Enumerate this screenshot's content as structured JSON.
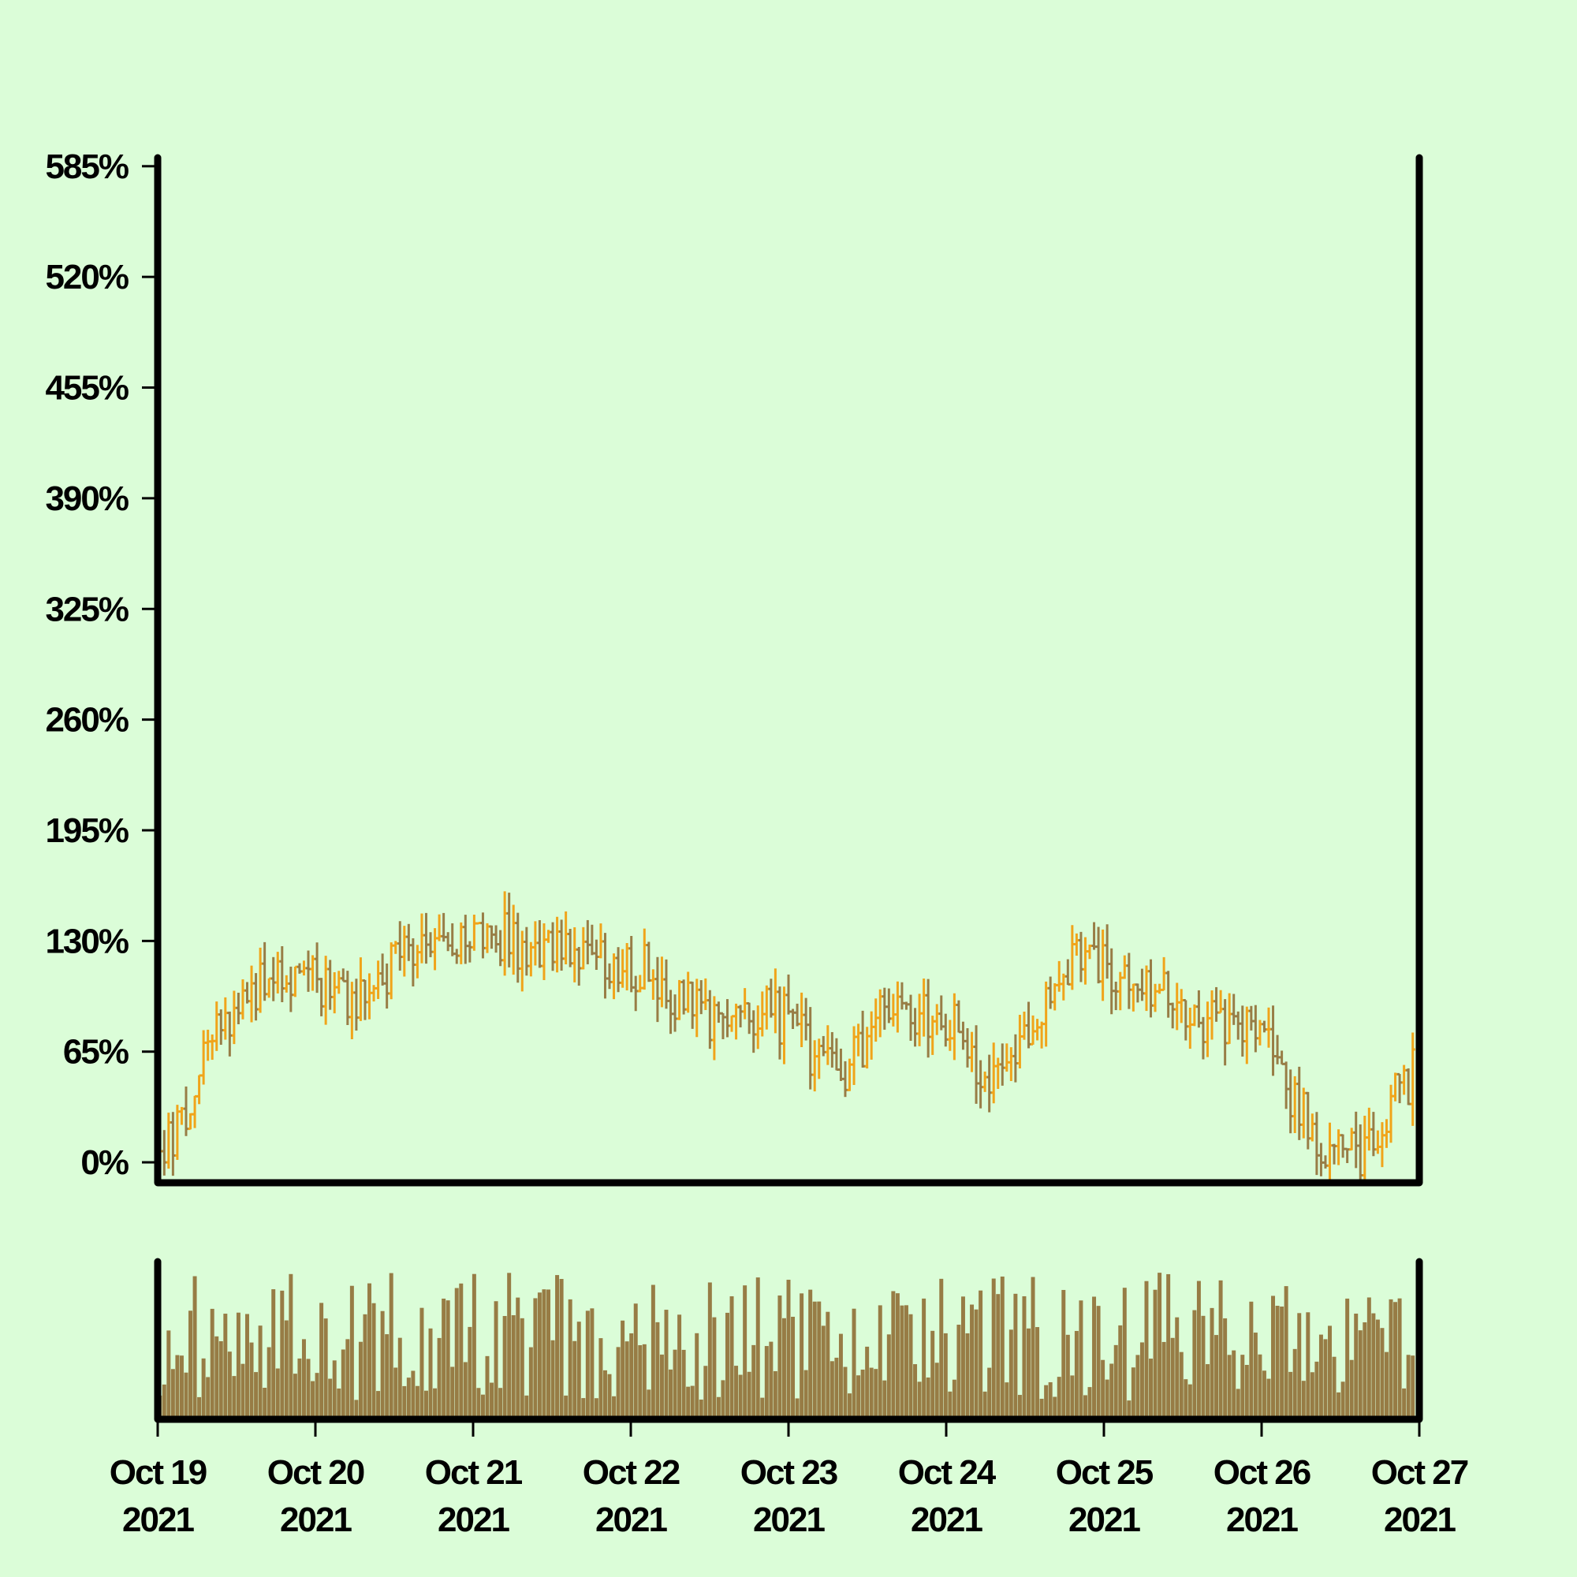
{
  "chart_data": {
    "type": "ohlc",
    "title": "",
    "xlabel": "",
    "ylabel": "",
    "y_unit": "%",
    "ylim": [
      -12,
      590
    ],
    "yticks": [
      0,
      65,
      130,
      195,
      260,
      325,
      390,
      455,
      520,
      585
    ],
    "ytick_labels": [
      "0%",
      "65%",
      "130%",
      "195%",
      "260%",
      "325%",
      "390%",
      "455%",
      "520%",
      "585%"
    ],
    "x_range": [
      "Oct 19 2021",
      "Oct 27 2021"
    ],
    "xtick_labels": [
      [
        "Oct 19",
        "2021"
      ],
      [
        "Oct 20",
        "2021"
      ],
      [
        "Oct 21",
        "2021"
      ],
      [
        "Oct 22",
        "2021"
      ],
      [
        "Oct 23",
        "2021"
      ],
      [
        "Oct 24",
        "2021"
      ],
      [
        "Oct 25",
        "2021"
      ],
      [
        "Oct 26",
        "2021"
      ],
      [
        "Oct 27",
        "2021"
      ]
    ],
    "grid": false,
    "legend": "none",
    "bars_per_day": 36,
    "colors": {
      "background": "#dbfdd8",
      "up": "#f0a41a",
      "down": "#987d46",
      "volume": "#977c45",
      "axis": "#000000"
    },
    "trend_anchors": [
      {
        "date": "Oct 19 2021",
        "value": 0
      },
      {
        "date": "Oct 19 2021 12:00",
        "value": 100
      },
      {
        "date": "Oct 20 2021",
        "value": 110
      },
      {
        "date": "Oct 20 2021 08:00",
        "value": 90
      },
      {
        "date": "Oct 20 2021 14:00",
        "value": 125
      },
      {
        "date": "Oct 21 2021",
        "value": 135
      },
      {
        "date": "Oct 21 2021 06:00",
        "value": 130
      },
      {
        "date": "Oct 21 2021 12:00",
        "value": 125
      },
      {
        "date": "Oct 22 2021",
        "value": 115
      },
      {
        "date": "Oct 22 2021 12:00",
        "value": 90
      },
      {
        "date": "Oct 23 2021",
        "value": 85
      },
      {
        "date": "Oct 23 2021 08:00",
        "value": 45
      },
      {
        "date": "Oct 23 2021 16:00",
        "value": 95
      },
      {
        "date": "Oct 24 2021",
        "value": 85
      },
      {
        "date": "Oct 24 2021 06:00",
        "value": 50
      },
      {
        "date": "Oct 24 2021 13:00",
        "value": 75
      },
      {
        "date": "Oct 24 2021 20:00",
        "value": 130
      },
      {
        "date": "Oct 25 2021",
        "value": 120
      },
      {
        "date": "Oct 25 2021 12:00",
        "value": 90
      },
      {
        "date": "Oct 26 2021",
        "value": 75
      },
      {
        "date": "Oct 26 2021 08:00",
        "value": 20
      },
      {
        "date": "Oct 26 2021 16:00",
        "value": 5
      },
      {
        "date": "Oct 27 2021",
        "value": 55
      }
    ]
  }
}
